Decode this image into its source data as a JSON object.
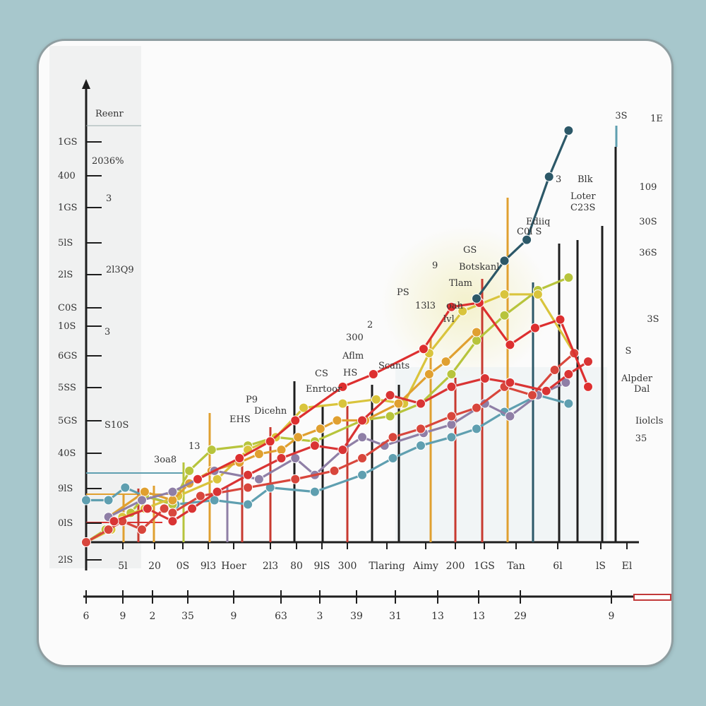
{
  "chart_data": {
    "type": "line",
    "title": "",
    "xlabel": "",
    "ylabel": "",
    "y_tick_labels": [
      "1GS",
      "400",
      "1GS",
      "5lS",
      "2lS",
      "C0S",
      "10S",
      "6GS",
      "5SS",
      "5GS",
      "40S",
      "9lS",
      "0lS",
      "2lS"
    ],
    "x_tick_labels": [
      "5l",
      "20",
      "0S",
      "9l3",
      "Hoer",
      "2l3",
      "80",
      "9lS",
      "300",
      "Tlaring",
      "Aimy",
      "200",
      "1GS",
      "Tan",
      "6l",
      "lS",
      "El"
    ],
    "axis2_tick_labels": [
      "6",
      "9",
      "2",
      "35",
      "9",
      "63",
      "3",
      "39",
      "31",
      "13",
      "13",
      "29",
      "9"
    ],
    "right_labels": [
      "3S",
      "1E",
      "109",
      "30S",
      "36S",
      "3S",
      "S",
      "35"
    ],
    "annotations": [
      "Reenr",
      "2036%",
      "2l3Q9",
      "3",
      "3",
      "S10S",
      "3oa8",
      "13",
      "EHS",
      "P9",
      "Dicehn",
      "CS",
      "Enrtoor",
      "300",
      "Aflm",
      "HS",
      "2",
      "Scants",
      "PS",
      "9",
      "13l3",
      "oah",
      "lvl",
      "Tlam",
      "Botskanl",
      "GS",
      "Ediiq",
      "C0l S",
      "Blk",
      "Loter",
      "C23S",
      "3",
      "Alpder",
      "Dal",
      "Iiolcls"
    ],
    "ylim": [
      0,
      100
    ],
    "grid": false,
    "legend": "none",
    "series": [
      {
        "color": "#5f9fb0",
        "x": [
          0,
          8,
          14,
          21,
          32,
          46,
          58,
          66,
          82,
          99,
          110,
          120,
          131,
          140,
          150,
          162,
          173
        ],
        "values": [
          10,
          10,
          13,
          11,
          9,
          10,
          9,
          13,
          12,
          16,
          20,
          23,
          25,
          27,
          31,
          35,
          33
        ]
      },
      {
        "color": "#b7c43c",
        "x": [
          0,
          7,
          16,
          21,
          31,
          37,
          45,
          58,
          68,
          82,
          99,
          109,
          120,
          131,
          140,
          150,
          162,
          173
        ],
        "values": [
          0,
          3,
          7,
          11,
          9,
          17,
          22,
          23,
          25,
          24,
          29,
          30,
          33,
          40,
          48,
          54,
          60,
          63
        ]
      },
      {
        "color": "#d9c43c",
        "x": [
          0,
          9,
          13,
          21,
          33,
          47,
          58,
          68,
          78,
          92,
          104,
          114,
          123,
          135,
          150,
          162,
          175
        ],
        "values": [
          0,
          3,
          6,
          8,
          11,
          15,
          22,
          25,
          32,
          33,
          34,
          33,
          45,
          55,
          59,
          59,
          45
        ]
      },
      {
        "color": "#e0a030",
        "x": [
          8,
          21,
          31,
          37,
          45,
          55,
          62,
          70,
          76,
          84,
          90,
          100,
          112,
          123,
          129,
          140
        ],
        "values": [
          6,
          12,
          10,
          14,
          17,
          19,
          21,
          22,
          25,
          27,
          29,
          29,
          33,
          40,
          43,
          50
        ]
      },
      {
        "color": "#8f7fa6",
        "x": [
          8,
          20,
          31,
          46,
          62,
          75,
          82,
          92,
          99,
          107,
          121,
          131,
          143,
          152,
          162,
          172
        ],
        "values": [
          6,
          10,
          12,
          17,
          15,
          20,
          16,
          22,
          25,
          23,
          26,
          28,
          33,
          30,
          35,
          38
        ]
      },
      {
        "color": "#d8463c",
        "x": [
          0,
          8,
          13,
          20,
          28,
          31,
          41,
          58,
          75,
          89,
          99,
          110,
          120,
          131,
          140,
          150,
          160,
          168,
          175
        ],
        "values": [
          0,
          3,
          5,
          3,
          8,
          7,
          11,
          13,
          15,
          17,
          20,
          25,
          27,
          30,
          32,
          37,
          35,
          41,
          45
        ]
      },
      {
        "color": "#d93434",
        "x": [
          10,
          22,
          31,
          38,
          47,
          58,
          70,
          82,
          92,
          99,
          109,
          120,
          131,
          143,
          152,
          165,
          173,
          180
        ],
        "values": [
          5,
          8,
          5,
          8,
          12,
          16,
          20,
          23,
          22,
          29,
          35,
          33,
          37,
          39,
          38,
          36,
          40,
          43
        ]
      },
      {
        "color": "#dd2f2f",
        "x": [
          40,
          55,
          66,
          75,
          92,
          103,
          121,
          131,
          141,
          152,
          161,
          170,
          180
        ],
        "values": [
          15,
          20,
          24,
          29,
          37,
          40,
          46,
          56,
          57,
          47,
          51,
          53,
          37
        ]
      },
      {
        "color": "#2c5868",
        "x": [
          140,
          150,
          158,
          166,
          173
        ],
        "values": [
          58,
          67,
          72,
          87,
          98
        ]
      }
    ]
  }
}
